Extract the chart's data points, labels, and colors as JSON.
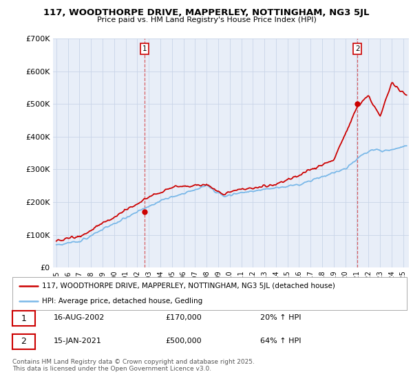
{
  "title": "117, WOODTHORPE DRIVE, MAPPERLEY, NOTTINGHAM, NG3 5JL",
  "subtitle": "Price paid vs. HM Land Registry's House Price Index (HPI)",
  "legend_line1": "117, WOODTHORPE DRIVE, MAPPERLEY, NOTTINGHAM, NG3 5JL (detached house)",
  "legend_line2": "HPI: Average price, detached house, Gedling",
  "annotation1_date": "16-AUG-2002",
  "annotation1_price": "£170,000",
  "annotation1_hpi": "20% ↑ HPI",
  "annotation2_date": "15-JAN-2021",
  "annotation2_price": "£500,000",
  "annotation2_hpi": "64% ↑ HPI",
  "footer": "Contains HM Land Registry data © Crown copyright and database right 2025.\nThis data is licensed under the Open Government Licence v3.0.",
  "hpi_color": "#7ab8e8",
  "price_color": "#cc0000",
  "annotation_color": "#cc0000",
  "grid_color": "#c8d4e8",
  "plot_bg": "#e8eef8",
  "ylim": [
    0,
    700000
  ],
  "yticks": [
    0,
    100000,
    200000,
    300000,
    400000,
    500000,
    600000,
    700000
  ],
  "ytick_labels": [
    "£0",
    "£100K",
    "£200K",
    "£300K",
    "£400K",
    "£500K",
    "£600K",
    "£700K"
  ],
  "sale1_year": 2002.62,
  "sale1_price": 170000,
  "sale2_year": 2021.04,
  "sale2_price": 500000
}
